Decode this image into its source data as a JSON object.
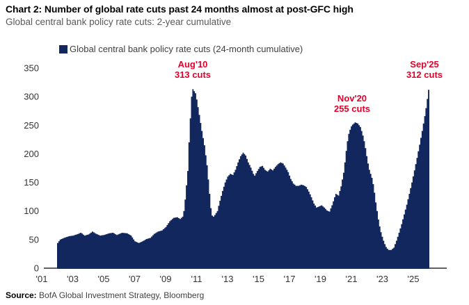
{
  "header": {
    "title": "Chart 2: Number of global rate cuts past 24 months almost at post-GFC high",
    "subtitle": "Global central bank policy rate cuts: 2-year cumulative"
  },
  "source": {
    "label": "Source:",
    "text": " BofA Global Investment Strategy, Bloomberg"
  },
  "colors": {
    "bar": "#12275e",
    "annotation": "#e4002b",
    "axis": "#4a4a4a",
    "tick_text": "#333333"
  },
  "chart_data": {
    "type": "bar",
    "title": "Global central bank policy rate cuts (24-month cumulative)",
    "legend": "Global central bank policy rate cuts (24-month cumulative)",
    "xlabel": "",
    "ylabel": "",
    "ylim": [
      0,
      350
    ],
    "y_ticks": [
      0,
      50,
      100,
      150,
      200,
      250,
      300,
      350
    ],
    "x_ticks": [
      "'01",
      "'03",
      "'05",
      "'07",
      "'09",
      "'11",
      "'13",
      "'15",
      "'17",
      "'19",
      "'21",
      "'23",
      "'25"
    ],
    "grid": false,
    "legend_position": "top",
    "series": [
      {
        "name": "Global central bank policy rate cuts (24-month cumulative)",
        "note": "values estimated from chart; keypoints as [month_index_from_first_bar, cuts]; monthly values linearly interpolated between keypoints",
        "keypoints": [
          [
            0,
            44
          ],
          [
            2,
            50
          ],
          [
            5,
            53
          ],
          [
            9,
            56
          ],
          [
            12,
            57
          ],
          [
            16,
            60
          ],
          [
            18,
            62
          ],
          [
            21,
            57
          ],
          [
            24,
            59
          ],
          [
            27,
            64
          ],
          [
            30,
            60
          ],
          [
            33,
            57
          ],
          [
            36,
            58
          ],
          [
            40,
            61
          ],
          [
            43,
            62
          ],
          [
            46,
            58
          ],
          [
            50,
            62
          ],
          [
            54,
            61
          ],
          [
            57,
            57
          ],
          [
            60,
            47
          ],
          [
            63,
            44
          ],
          [
            66,
            47
          ],
          [
            69,
            51
          ],
          [
            72,
            53
          ],
          [
            75,
            60
          ],
          [
            78,
            64
          ],
          [
            81,
            66
          ],
          [
            84,
            72
          ],
          [
            87,
            82
          ],
          [
            90,
            88
          ],
          [
            93,
            89
          ],
          [
            95,
            86
          ],
          [
            97,
            90
          ],
          [
            98,
            100
          ],
          [
            99,
            120
          ],
          [
            100,
            145
          ],
          [
            101,
            170
          ],
          [
            102,
            220
          ],
          [
            103,
            262
          ],
          [
            104,
            300
          ],
          [
            105,
            313
          ],
          [
            107,
            306
          ],
          [
            108,
            295
          ],
          [
            110,
            268
          ],
          [
            112,
            240
          ],
          [
            114,
            215
          ],
          [
            116,
            180
          ],
          [
            118,
            130
          ],
          [
            119,
            105
          ],
          [
            120,
            92
          ],
          [
            121,
            90
          ],
          [
            122,
            93
          ],
          [
            124,
            100
          ],
          [
            126,
            118
          ],
          [
            128,
            135
          ],
          [
            130,
            150
          ],
          [
            132,
            160
          ],
          [
            134,
            165
          ],
          [
            136,
            163
          ],
          [
            138,
            172
          ],
          [
            140,
            185
          ],
          [
            142,
            196
          ],
          [
            144,
            202
          ],
          [
            146,
            197
          ],
          [
            148,
            185
          ],
          [
            150,
            176
          ],
          [
            152,
            165
          ],
          [
            153,
            162
          ],
          [
            155,
            170
          ],
          [
            157,
            177
          ],
          [
            159,
            179
          ],
          [
            161,
            172
          ],
          [
            163,
            169
          ],
          [
            165,
            174
          ],
          [
            167,
            171
          ],
          [
            169,
            177
          ],
          [
            171,
            182
          ],
          [
            173,
            185
          ],
          [
            175,
            183
          ],
          [
            177,
            176
          ],
          [
            179,
            168
          ],
          [
            181,
            156
          ],
          [
            183,
            148
          ],
          [
            185,
            144
          ],
          [
            187,
            144
          ],
          [
            189,
            146
          ],
          [
            191,
            145
          ],
          [
            193,
            142
          ],
          [
            195,
            134
          ],
          [
            197,
            124
          ],
          [
            199,
            113
          ],
          [
            201,
            106
          ],
          [
            203,
            108
          ],
          [
            205,
            110
          ],
          [
            207,
            106
          ],
          [
            209,
            101
          ],
          [
            211,
            99
          ],
          [
            213,
            110
          ],
          [
            215,
            124
          ],
          [
            216,
            130
          ],
          [
            218,
            127
          ],
          [
            219,
            135
          ],
          [
            220,
            143
          ],
          [
            221,
            155
          ],
          [
            222,
            167
          ],
          [
            223,
            185
          ],
          [
            224,
            205
          ],
          [
            225,
            222
          ],
          [
            226,
            235
          ],
          [
            227,
            242
          ],
          [
            228,
            248
          ],
          [
            229,
            251
          ],
          [
            231,
            255
          ],
          [
            233,
            253
          ],
          [
            235,
            247
          ],
          [
            236,
            240
          ],
          [
            237,
            232
          ],
          [
            238,
            222
          ],
          [
            239,
            210
          ],
          [
            240,
            196
          ],
          [
            241,
            183
          ],
          [
            242,
            172
          ],
          [
            243,
            165
          ],
          [
            244,
            158
          ],
          [
            245,
            147
          ],
          [
            246,
            132
          ],
          [
            247,
            115
          ],
          [
            248,
            100
          ],
          [
            249,
            85
          ],
          [
            250,
            73
          ],
          [
            251,
            63
          ],
          [
            252,
            55
          ],
          [
            253,
            48
          ],
          [
            254,
            42
          ],
          [
            255,
            37
          ],
          [
            256,
            34
          ],
          [
            257,
            32
          ],
          [
            259,
            32
          ],
          [
            261,
            36
          ],
          [
            263,
            48
          ],
          [
            265,
            62
          ],
          [
            267,
            77
          ],
          [
            269,
            94
          ],
          [
            271,
            111
          ],
          [
            273,
            130
          ],
          [
            275,
            150
          ],
          [
            277,
            171
          ],
          [
            279,
            193
          ],
          [
            281,
            216
          ],
          [
            283,
            240
          ],
          [
            285,
            266
          ],
          [
            286,
            280
          ],
          [
            287,
            296
          ],
          [
            288,
            312
          ]
        ]
      }
    ],
    "annotations": [
      {
        "line1": "Aug'10",
        "line2": "313 cuts",
        "month": 105,
        "value": 313
      },
      {
        "line1": "Nov'20",
        "line2": "255 cuts",
        "month": 231,
        "value": 255
      },
      {
        "line1": "Sep'25",
        "line2": "312 cuts",
        "month": 288,
        "value": 312
      }
    ]
  }
}
